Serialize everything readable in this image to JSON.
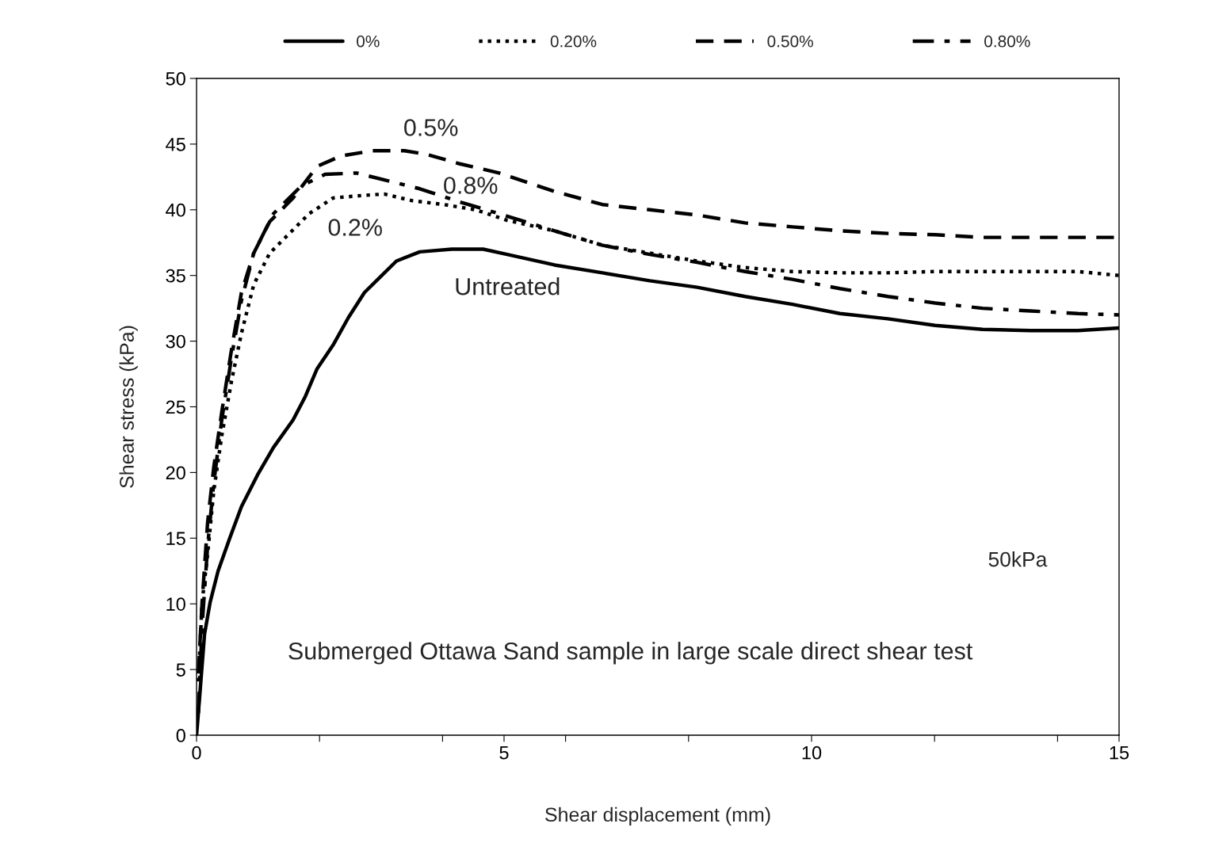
{
  "chart_data": {
    "type": "line",
    "xlabel": "Shear displacement (mm)",
    "ylabel": "Shear stress (kPa)",
    "xlim": [
      0,
      15
    ],
    "ylim": [
      0,
      50
    ],
    "xticks": [
      0,
      {
        "value": 2,
        "label": null
      },
      {
        "value": 4,
        "label": null
      },
      5,
      {
        "value": 6,
        "label": null
      },
      {
        "value": 8,
        "label": null
      },
      10,
      {
        "value": 12,
        "label": null
      },
      {
        "value": 14,
        "label": null
      },
      15
    ],
    "yticks": [
      0,
      5,
      10,
      15,
      20,
      25,
      30,
      35,
      40,
      45,
      50
    ],
    "grid": false,
    "legend": "top",
    "marker": "none",
    "series": [
      {
        "name": "0%",
        "color": "#000000",
        "line_style": "solid",
        "x": [
          0,
          0.05,
          0.13,
          0.22,
          0.35,
          0.54,
          0.73,
          0.99,
          1.25,
          1.57,
          1.77,
          1.96,
          2.22,
          2.47,
          2.73,
          2.99,
          3.25,
          3.63,
          4.15,
          4.66,
          5.05,
          5.82,
          6.6,
          7.37,
          8.14,
          8.92,
          9.69,
          10.46,
          11.24,
          12.01,
          12.78,
          13.56,
          14.33,
          15
        ],
        "values": [
          0,
          2.9,
          7.7,
          10.1,
          12.5,
          15,
          17.4,
          19.8,
          21.9,
          24,
          25.8,
          27.9,
          29.7,
          31.8,
          33.7,
          34.9,
          36.1,
          36.8,
          37.0,
          37.0,
          36.6,
          35.8,
          35.2,
          34.6,
          34.1,
          33.4,
          32.8,
          32.1,
          31.7,
          31.2,
          30.9,
          30.8,
          30.8,
          31.0
        ]
      },
      {
        "name": "0.20%",
        "color": "#000000",
        "line_style": "dotted",
        "x": [
          0.03,
          0.09,
          0.18,
          0.28,
          0.41,
          0.57,
          0.73,
          0.93,
          1.19,
          1.51,
          1.83,
          2.22,
          2.73,
          3.05,
          3.5,
          4.02,
          4.54,
          5.05,
          5.82,
          6.6,
          7.37,
          8.14,
          8.92,
          9.69,
          10.46,
          11.24,
          12.01,
          12.78,
          13.56,
          14.33,
          15
        ],
        "values": [
          4.1,
          10.1,
          13.8,
          18.6,
          22.8,
          27,
          30.6,
          34.3,
          36.7,
          38.2,
          39.7,
          40.9,
          41.1,
          41.2,
          40.7,
          40.4,
          40.0,
          39.2,
          38.4,
          37.3,
          36.7,
          36.1,
          35.6,
          35.3,
          35.2,
          35.2,
          35.3,
          35.3,
          35.3,
          35.3,
          35.0
        ]
      },
      {
        "name": "0.50%",
        "color": "#000000",
        "line_style": "dashed",
        "x": [
          0.03,
          0.09,
          0.18,
          0.28,
          0.41,
          0.57,
          0.73,
          0.93,
          1.19,
          1.57,
          1.96,
          2.35,
          2.86,
          3.38,
          3.76,
          4.28,
          4.92,
          5.82,
          6.6,
          7.37,
          8.14,
          8.92,
          9.69,
          10.46,
          11.24,
          12.01,
          12.78,
          13.56,
          14.33,
          15
        ],
        "values": [
          4.7,
          10.1,
          16.2,
          20.4,
          24.6,
          29.4,
          33.7,
          36.7,
          39.1,
          40.9,
          43.3,
          44.1,
          44.5,
          44.5,
          44.2,
          43.5,
          42.8,
          41.4,
          40.4,
          40.0,
          39.6,
          39.0,
          38.7,
          38.4,
          38.2,
          38.1,
          37.9,
          37.9,
          37.9,
          37.9
        ]
      },
      {
        "name": "0.80%",
        "color": "#000000",
        "line_style": "dashdot",
        "x": [
          0.03,
          0.09,
          0.18,
          0.28,
          0.41,
          0.57,
          0.73,
          0.93,
          1.25,
          1.7,
          2.09,
          2.6,
          3.12,
          3.63,
          4.28,
          4.92,
          5.82,
          6.6,
          7.37,
          8.14,
          8.92,
          9.69,
          10.46,
          11.24,
          12.01,
          12.78,
          13.56,
          14.33,
          15
        ],
        "values": [
          1.7,
          8.3,
          14.4,
          19.2,
          24,
          28.8,
          33.1,
          36.7,
          39.7,
          41.8,
          42.7,
          42.8,
          42.2,
          41.6,
          40.6,
          39.7,
          38.4,
          37.3,
          36.6,
          36.0,
          35.3,
          34.7,
          34.0,
          33.4,
          32.9,
          32.5,
          32.3,
          32.1,
          32.0
        ]
      }
    ],
    "annotations": [
      "0.5%",
      "0.8%",
      "0.2%",
      "Untreated",
      "50kPa",
      "Submerged Ottawa Sand sample in large scale direct shear test"
    ]
  }
}
